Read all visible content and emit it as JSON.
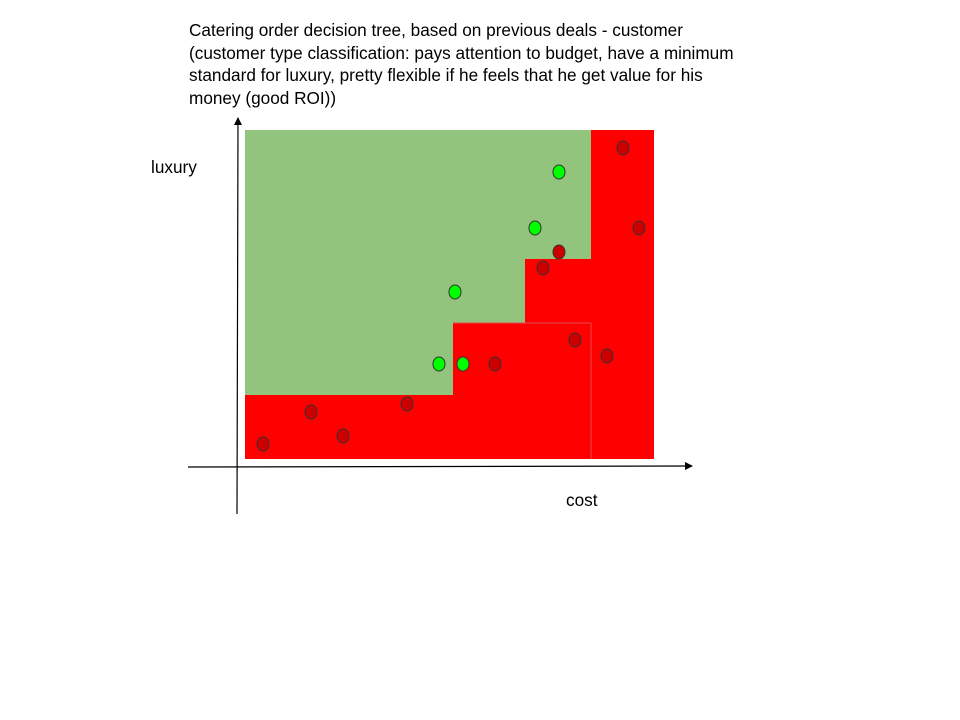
{
  "title_lines": [
    "Catering order decision tree, based on previous deals - customer",
    "(customer type classification: pays attention to budget, have a minimum",
    "standard for luxury, pretty flexible if he feels that he get value for his",
    "money (good ROI))"
  ],
  "axes": {
    "y_label": "luxury",
    "x_label": "cost"
  },
  "colors": {
    "accept_region": "#93c47d",
    "reject_region": "#ff0000",
    "accept_point": "#00ff00",
    "reject_point": "#cc0000",
    "point_outline": "#333333",
    "axis": "#000000"
  },
  "legend_regions": [
    "accept-region",
    "reject-region"
  ]
}
